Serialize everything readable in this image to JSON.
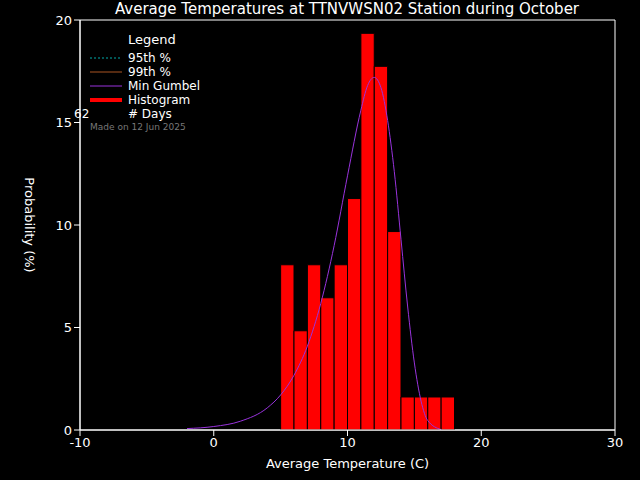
{
  "chart_data": {
    "type": "histogram",
    "title": "Average Temperatures at TTNVWSN02 Station during October",
    "x_label": "Average Temperature (C)",
    "y_label": "Probability (%)",
    "xlim": [
      -10,
      30
    ],
    "xticks": [
      -10,
      0,
      10,
      20,
      30
    ],
    "ylim": [
      0,
      20
    ],
    "yticks": [
      0,
      5,
      10,
      15,
      20
    ],
    "bins": [
      5,
      6,
      7,
      8,
      9,
      10,
      11,
      12,
      13,
      14,
      15,
      16,
      17,
      18
    ],
    "counts": [
      8.06,
      4.84,
      8.06,
      6.45,
      8.06,
      11.29,
      19.35,
      17.74,
      9.68,
      1.61,
      1.61,
      1.61,
      1.61
    ],
    "color": "#ff0000",
    "legend": "upper left",
    "legend_title": "Legend",
    "series": [
      {
        "name": "95th %",
        "color": "#00aaaa",
        "line_style": "dotted",
        "x": [],
        "values": []
      },
      {
        "name": "99th %",
        "color": "#aa5522",
        "line_style": "solid",
        "x": [],
        "values": []
      },
      {
        "name": "Min Gumbel",
        "color": "#9933dd",
        "line_style": "solid",
        "x": [
          -2,
          0,
          2,
          4,
          5,
          6,
          7,
          8,
          9,
          10,
          11,
          11.5,
          12,
          12.5,
          13,
          13.5,
          14,
          14.5,
          15,
          15.5,
          16,
          17
        ],
        "values": [
          0.07,
          0.17,
          0.43,
          1.08,
          1.71,
          2.67,
          4.09,
          6.17,
          8.99,
          12.4,
          15.6,
          16.8,
          17.2,
          16.7,
          15.1,
          12.6,
          9.3,
          6.0,
          3.27,
          1.41,
          0.46,
          0.02
        ]
      }
    ],
    "histogram_label": "Histogram",
    "days": 62,
    "days_label": "# Days",
    "annotation": "Made on 12 Jun 2025"
  }
}
